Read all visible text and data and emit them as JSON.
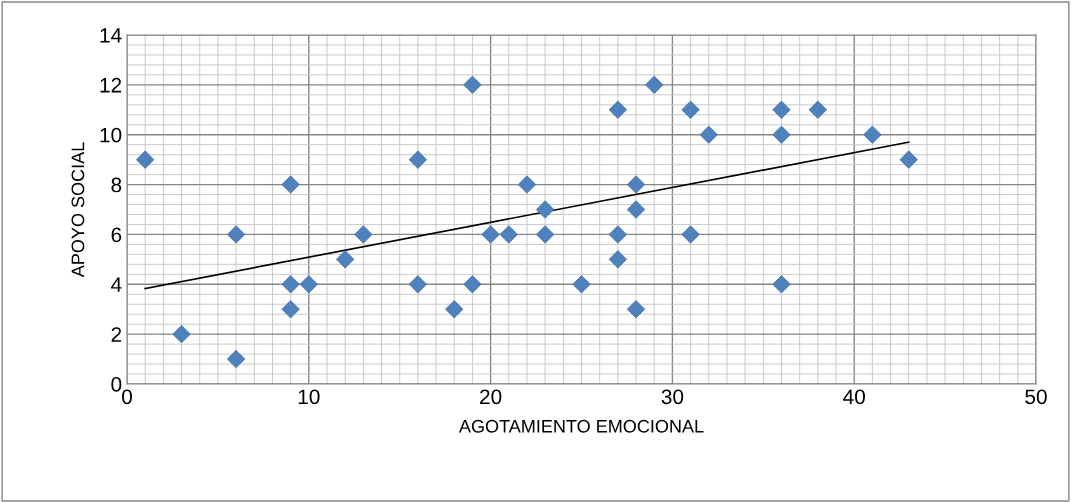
{
  "chart_data": {
    "type": "scatter",
    "xlabel": "AGOTAMIENTO EMOCIONAL",
    "ylabel": "APOYO SOCIAL",
    "x": [
      1,
      3,
      6,
      6,
      9,
      9,
      9,
      10,
      12,
      13,
      16,
      16,
      18,
      19,
      19,
      20,
      21,
      22,
      23,
      23,
      25,
      27,
      27,
      27,
      28,
      28,
      28,
      29,
      31,
      31,
      32,
      36,
      36,
      36,
      38,
      41,
      43
    ],
    "series": [
      {
        "color": "#4f81bd",
        "marker": "diamond",
        "values": [
          9,
          2,
          6,
          1,
          8,
          4,
          3,
          4,
          5,
          6,
          9,
          4,
          3,
          12,
          4,
          6,
          6,
          8,
          7,
          6,
          4,
          11,
          6,
          5,
          8,
          7,
          3,
          12,
          11,
          6,
          10,
          11,
          10,
          4,
          11,
          10,
          9
        ]
      },
      {
        "type": "line",
        "color": "#000000",
        "x": [
          1,
          43
        ],
        "values": [
          3.83,
          9.7
        ]
      }
    ],
    "xlim": [
      0,
      50
    ],
    "xticks": [
      0,
      10,
      20,
      30,
      40,
      50
    ],
    "ylim": [
      0,
      14
    ],
    "yticks": [
      0,
      2,
      4,
      6,
      8,
      10,
      12,
      14
    ],
    "grid": true,
    "legend": false
  }
}
